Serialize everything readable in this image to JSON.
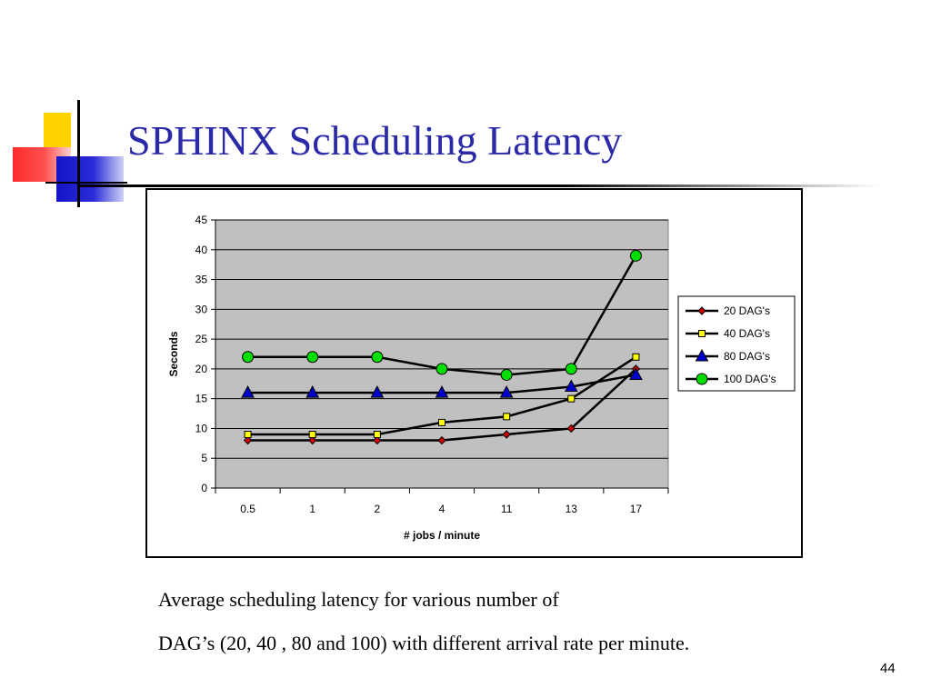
{
  "slide": {
    "title": "SPHINX Scheduling Latency",
    "caption_line1": "Average scheduling latency for various number of",
    "caption_line2": "DAG’s (20, 40 , 80 and 100) with different arrival rate per minute.",
    "page_number": "44"
  },
  "colors": {
    "title": "#2a2aa8",
    "plot_background": "#c0c0c0",
    "line": "#000000",
    "accent_yellow": "#ffd200",
    "accent_red": "#ff2a2a",
    "accent_blue": "#1414c8"
  },
  "chart_data": {
    "type": "line",
    "categories": [
      "0.5",
      "1",
      "2",
      "4",
      "11",
      "13",
      "17"
    ],
    "xlabel": "# jobs / minute",
    "ylabel": "Seconds",
    "ylim": [
      0,
      45
    ],
    "yticks": [
      0,
      5,
      10,
      15,
      20,
      25,
      30,
      35,
      40,
      45
    ],
    "grid": "horizontal",
    "legend_position": "right",
    "series": [
      {
        "name": "20 DAG's",
        "values": [
          8,
          8,
          8,
          8,
          9,
          10,
          20
        ],
        "marker": "diamond",
        "color": "#cc0000"
      },
      {
        "name": "40 DAG's",
        "values": [
          9,
          9,
          9,
          11,
          12,
          15,
          22
        ],
        "marker": "square",
        "color": "#ffff00"
      },
      {
        "name": "80 DAG's",
        "values": [
          16,
          16,
          16,
          16,
          16,
          17,
          19
        ],
        "marker": "triangle",
        "color": "#0000cc"
      },
      {
        "name": "100 DAG's",
        "values": [
          22,
          22,
          22,
          20,
          19,
          20,
          39
        ],
        "marker": "circle",
        "color": "#00dd00"
      }
    ]
  }
}
